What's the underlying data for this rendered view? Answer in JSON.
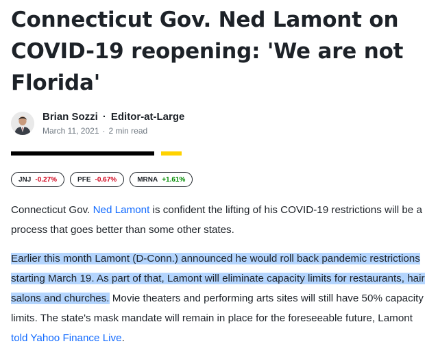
{
  "article": {
    "headline": "Connecticut Gov. Ned Lamont on COVID-19 reopening: 'We are not Florida'",
    "author": {
      "name": "Brian Sozzi",
      "separator": "·",
      "title": "Editor-at-Large",
      "date": "March 11, 2021",
      "meta_separator": "·",
      "read_time": "2 min read"
    },
    "tickers": [
      {
        "symbol": "JNJ",
        "change": "-0.27%",
        "direction": "down"
      },
      {
        "symbol": "PFE",
        "change": "-0.67%",
        "direction": "down"
      },
      {
        "symbol": "MRNA",
        "change": "+1.61%",
        "direction": "up"
      }
    ],
    "paragraph1": {
      "before": "Connecticut Gov. ",
      "link": "Ned Lamont",
      "after": " is confident the lifting of his COVID-19 restrictions will be a process that goes better than some other states."
    },
    "paragraph2": {
      "highlighted": "Earlier this month Lamont (D-Conn.) announced he would roll back pandemic restrictions starting March 19. As part of that, Lamont will eliminate capacity limits for restaurants, hair salons and churches.",
      "rest": " Movie theaters and performing arts sites will still have 50% capacity limits. The state's mask mandate will remain in place for the foreseeable future, Lamont ",
      "link": "told Yahoo Finance Live",
      "end": "."
    }
  },
  "colors": {
    "text": "#1d2228",
    "link": "#0f69ff",
    "negative": "#d0021b",
    "positive": "#008a00",
    "highlight": "#b4d5fe",
    "accent_yellow": "#ffd200"
  }
}
